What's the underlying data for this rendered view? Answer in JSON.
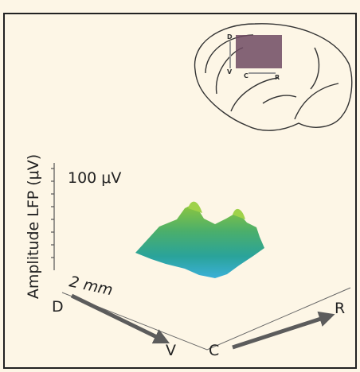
{
  "axis_label": "Amplitude LFP (μV)",
  "scale": {
    "amplitude": "100 μV",
    "distance": "2 mm"
  },
  "directions": {
    "dorsal": "D",
    "ventral": "V",
    "caudal": "C",
    "rostral": "R"
  },
  "inset_labels": {
    "dorsal": "D",
    "ventral": "V",
    "caudal": "C",
    "rostral": "R"
  }
}
